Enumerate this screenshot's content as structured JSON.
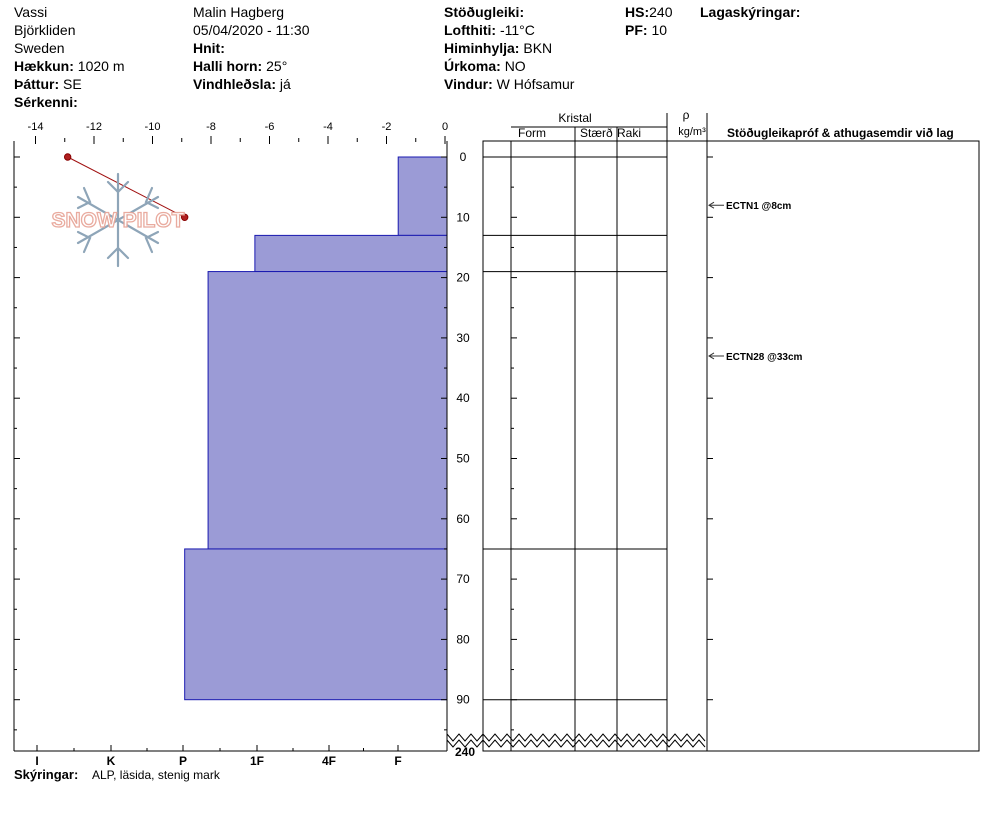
{
  "header": {
    "location": "Vassi",
    "area": "Björkliden",
    "country": "Sweden",
    "observer": "Malin Hagberg",
    "datetime": "05/04/2020 - 11:30",
    "elevation_label": "Hækkun:",
    "elevation": "1020 m",
    "aspect_label": "Þáttur:",
    "aspect": "SE",
    "specifics_label": "Sérkenni:",
    "coords_label": "Hnit:",
    "slope_label": "Halli horn:",
    "slope": "25°",
    "windload_label": "Vindhleðsla:",
    "windload": "já",
    "stability_label": "Stöðugleiki:",
    "airtemp_label": "Lofthiti:",
    "airtemp": "-11°C",
    "sky_label": "Himinhylja:",
    "sky": "BKN",
    "precip_label": "Úrkoma:",
    "precip": "NO",
    "wind_label": "Vindur:",
    "wind": "W Hófsamur",
    "hs_label": "HS:",
    "hs": "240",
    "pf_label": "PF:",
    "pf": "10",
    "layer_notes_label": "Lagaskýringar:",
    "notes_label": "Skýringar:",
    "notes": "ALP, läsida, stenig mark"
  },
  "logo_text": "SNOW PILOT",
  "columns": {
    "crystal": "Kristal",
    "form": "Form",
    "size": "Stærð",
    "moisture": "Raki",
    "rho": "ρ",
    "density_unit": "kg/m³",
    "tests": "Stöðugleikapróf & athugasemdir við lag"
  },
  "chart_data": {
    "type": "bar",
    "temperature_axis": {
      "ticks": [
        "-14",
        "-12",
        "-10",
        "-8",
        "-6",
        "-4",
        "-2",
        "0"
      ],
      "range": [
        -15,
        0
      ]
    },
    "depth_axis": {
      "ticks": [
        "0",
        "10",
        "20",
        "30",
        "40",
        "50",
        "60",
        "70",
        "80",
        "90"
      ],
      "bottom_label": "240",
      "range_cm": [
        0,
        90
      ]
    },
    "hardness_axis": {
      "labels": [
        "I",
        "K",
        "P",
        "1F",
        "4F",
        "F"
      ]
    },
    "hardness_profile": [
      {
        "top_cm": 0,
        "bottom_cm": 13,
        "temp_equiv": -1.6
      },
      {
        "top_cm": 13,
        "bottom_cm": 19,
        "temp_equiv": -6.5
      },
      {
        "top_cm": 19,
        "bottom_cm": 65,
        "temp_equiv": -8.1
      },
      {
        "top_cm": 65,
        "bottom_cm": 90,
        "temp_equiv": -8.9
      }
    ],
    "temperature_profile": [
      {
        "depth_cm": 0,
        "temp_c": -12.9
      },
      {
        "depth_cm": 10,
        "temp_c": -8.9
      }
    ],
    "layer_boundaries_cm": [
      0,
      13,
      19,
      65,
      90
    ],
    "tests": [
      {
        "depth_cm": 8,
        "label": "ECTN1 @8cm"
      },
      {
        "depth_cm": 33,
        "label": "ECTN28 @33cm"
      }
    ]
  }
}
